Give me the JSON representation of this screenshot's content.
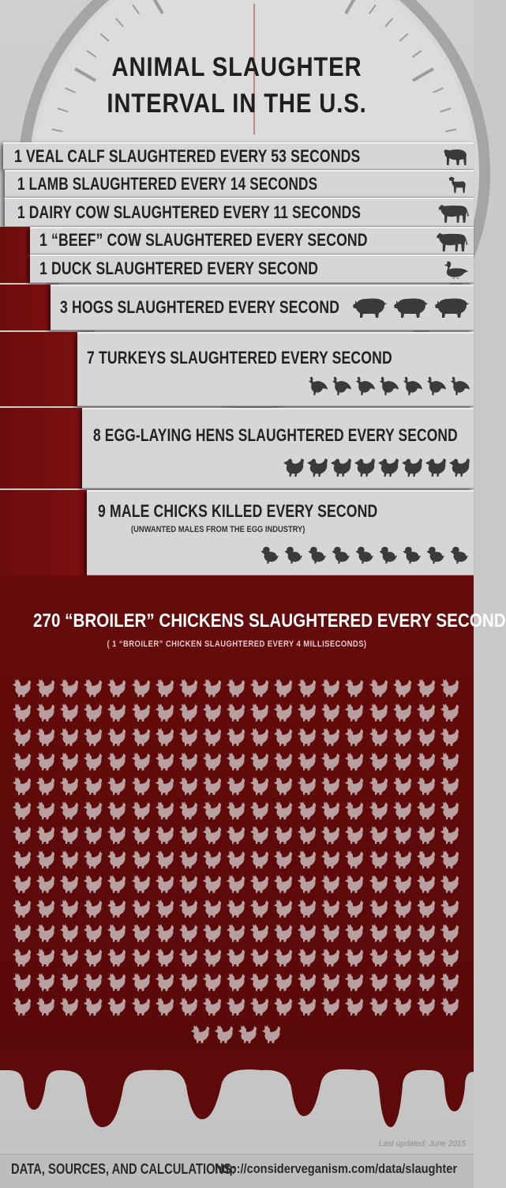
{
  "title": {
    "line1": "ANIMAL SLAUGHTER",
    "line2": "INTERVAL IN THE U.S."
  },
  "colors": {
    "blood": "#660b0b",
    "bar": "#d6d6d6",
    "text": "#222222",
    "icon": "#3a3a3a",
    "chicken": "#b9a0a0"
  },
  "rows": [
    {
      "label": "1 VEAL CALF SLAUGHTERED EVERY 53 SECONDS",
      "icon": "calf-icon",
      "count": 1
    },
    {
      "label": "1 LAMB SLAUGHTERED EVERY 14 SECONDS",
      "icon": "lamb-icon",
      "count": 1
    },
    {
      "label": "1 DAIRY COW SLAUGHTERED EVERY 11 SECONDS",
      "icon": "cow-icon",
      "count": 1
    },
    {
      "label": "1 “BEEF” COW SLAUGHTERED EVERY SECOND",
      "icon": "cow-icon",
      "count": 1
    },
    {
      "label": "1 DUCK SLAUGHTERED EVERY SECOND",
      "icon": "duck-icon",
      "count": 1
    },
    {
      "label": "3 HOGS SLAUGHTERED EVERY SECOND",
      "icon": "hog-icon",
      "count": 3
    },
    {
      "label": "7 TURKEYS SLAUGHTERED EVERY SECOND",
      "icon": "turkey-icon",
      "count": 7
    },
    {
      "label": "8 EGG-LAYING HENS SLAUGHTERED EVERY SECOND",
      "icon": "hen-icon",
      "count": 8
    },
    {
      "label": "9 MALE CHICKS KILLED EVERY SECOND",
      "sublabel": "(UNWANTED MALES FROM THE EGG INDUSTRY)",
      "icon": "chick-icon",
      "count": 9
    }
  ],
  "broiler": {
    "label": "270 “BROILER” CHICKENS SLAUGHTERED EVERY SECOND",
    "sublabel": "( 1 “BROILER” CHICKEN SLAUGHTERED EVERY 4 MILLISECONDS)",
    "icon": "chicken-icon",
    "count": 270
  },
  "footer": {
    "updated": "Last updated: June 2015",
    "label": "DATA, SOURCES, AND CALCULATIONS:",
    "url": "http://considerveganism.com/data/slaughter"
  }
}
